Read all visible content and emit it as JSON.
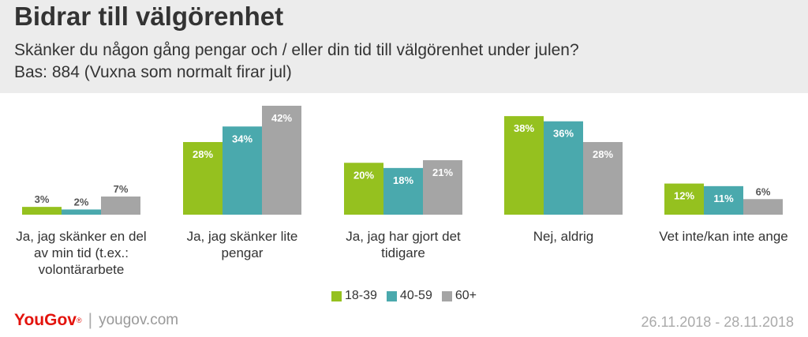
{
  "header": {
    "title": "Bidrar till välgörenhet",
    "subtitle": "Skänker du någon gång pengar och / eller din tid till välgörenhet under julen?",
    "base": "Bas: 884 (Vuxna som normalt firar jul)"
  },
  "chart_data": {
    "type": "bar",
    "title": "Bidrar till välgörenhet",
    "categories": [
      "Ja, jag skänker en del av min tid (t.ex.: volontärarbete",
      "Ja, jag skänker lite pengar",
      "Ja, jag har gjort det tidigare",
      "Nej, aldrig",
      "Vet inte/kan inte ange"
    ],
    "category_lines": [
      [
        "Ja, jag skänker en del",
        "av min tid (t.ex.:",
        "volontärarbete"
      ],
      [
        "Ja, jag skänker lite",
        "pengar"
      ],
      [
        "Ja, jag har gjort det",
        "tidigare"
      ],
      [
        "Nej, aldrig"
      ],
      [
        "Vet inte/kan inte ange"
      ]
    ],
    "series": [
      {
        "name": "18-39",
        "values": [
          3,
          28,
          20,
          38,
          12
        ],
        "color": "#95c11f"
      },
      {
        "name": "40-59",
        "values": [
          2,
          34,
          18,
          36,
          11
        ],
        "color": "#4aa9ad"
      },
      {
        "name": "60+",
        "values": [
          7,
          42,
          21,
          28,
          6
        ],
        "color": "#a5a5a5"
      }
    ],
    "value_suffix": "%",
    "ylim": [
      0,
      42
    ],
    "grid": false,
    "legend_position": "bottom-center"
  },
  "legend": [
    {
      "label": "18-39",
      "color": "#95c11f"
    },
    {
      "label": "40-59",
      "color": "#4aa9ad"
    },
    {
      "label": "60+",
      "color": "#a5a5a5"
    }
  ],
  "footer": {
    "logo_you": "You",
    "logo_gov": "Gov",
    "logo_mark": "®",
    "separator": "|",
    "url": "yougov.com",
    "date_range": "26.11.2018 - 28.11.2018"
  }
}
